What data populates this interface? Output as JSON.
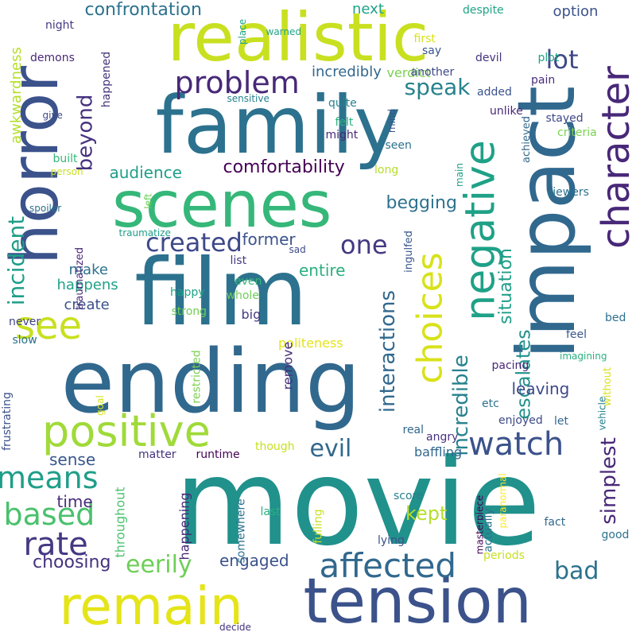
{
  "words": [
    {
      "text": "movie",
      "color": "#21918c",
      "vertical": false
    },
    {
      "text": "film",
      "color": "#2c728e",
      "vertical": false
    },
    {
      "text": "ending",
      "color": "#31688e",
      "vertical": false
    },
    {
      "text": "family",
      "color": "#2c728e",
      "vertical": false
    },
    {
      "text": "tension",
      "color": "#3b528b",
      "vertical": false
    },
    {
      "text": "remain",
      "color": "#e5e419",
      "vertical": false
    },
    {
      "text": "realistic",
      "color": "#c8e020",
      "vertical": false
    },
    {
      "text": "scenes",
      "color": "#35b779",
      "vertical": false
    },
    {
      "text": "impact",
      "color": "#31688e",
      "vertical": true
    },
    {
      "text": "horror",
      "color": "#3b528b",
      "vertical": true
    },
    {
      "text": "positive",
      "color": "#a0da39",
      "vertical": false
    },
    {
      "text": "negative",
      "color": "#1fa187",
      "vertical": true
    },
    {
      "text": "choices",
      "color": "#d8e219",
      "vertical": true
    },
    {
      "text": "character",
      "color": "#482878",
      "vertical": true
    },
    {
      "text": "see",
      "color": "#c8e020",
      "vertical": false
    },
    {
      "text": "affected",
      "color": "#31688e",
      "vertical": false
    },
    {
      "text": "watch",
      "color": "#3b528b",
      "vertical": false
    },
    {
      "text": "based",
      "color": "#4ac16d",
      "vertical": false
    },
    {
      "text": "rate",
      "color": "#443983",
      "vertical": false
    },
    {
      "text": "means",
      "color": "#1f9e89",
      "vertical": false
    },
    {
      "text": "problem",
      "color": "#482878",
      "vertical": false
    },
    {
      "text": "one",
      "color": "#443983",
      "vertical": false
    },
    {
      "text": "created",
      "color": "#3e4989",
      "vertical": false
    },
    {
      "text": "evil",
      "color": "#31688e",
      "vertical": false
    },
    {
      "text": "bad",
      "color": "#2c728e",
      "vertical": false
    },
    {
      "text": "lot",
      "color": "#3e4989",
      "vertical": false
    },
    {
      "text": "eerily",
      "color": "#6ece58",
      "vertical": false
    },
    {
      "text": "speak",
      "color": "#26828e",
      "vertical": false
    },
    {
      "text": "simplest",
      "color": "#482878",
      "vertical": true
    },
    {
      "text": "interactions",
      "color": "#31688e",
      "vertical": true
    },
    {
      "text": "incredible",
      "color": "#26828e",
      "vertical": true
    },
    {
      "text": "escalates",
      "color": "#21918c",
      "vertical": true
    },
    {
      "text": "situation",
      "color": "#1f9e89",
      "vertical": true
    },
    {
      "text": "incident",
      "color": "#1f9e89",
      "vertical": true
    },
    {
      "text": "beyond",
      "color": "#46327e",
      "vertical": true
    },
    {
      "text": "confrontation",
      "color": "#2c728e",
      "vertical": false
    },
    {
      "text": "comfortability",
      "color": "#440154",
      "vertical": false
    },
    {
      "text": "audience",
      "color": "#1f9e89",
      "vertical": false
    },
    {
      "text": "begging",
      "color": "#2c728e",
      "vertical": false
    },
    {
      "text": "former",
      "color": "#3b528b",
      "vertical": false
    },
    {
      "text": "entire",
      "color": "#2ab07f",
      "vertical": false
    },
    {
      "text": "leaving",
      "color": "#3e4989",
      "vertical": false
    },
    {
      "text": "kept",
      "color": "#b5de2b",
      "vertical": false
    },
    {
      "text": "time",
      "color": "#472c7a",
      "vertical": false
    },
    {
      "text": "sense",
      "color": "#39568c",
      "vertical": false
    },
    {
      "text": "choosing",
      "color": "#46327e",
      "vertical": false
    },
    {
      "text": "engaged",
      "color": "#3b528b",
      "vertical": false
    },
    {
      "text": "make",
      "color": "#2c728e",
      "vertical": false
    },
    {
      "text": "create",
      "color": "#3b528b",
      "vertical": false
    },
    {
      "text": "happens",
      "color": "#1fa187",
      "vertical": false
    },
    {
      "text": "politeness",
      "color": "#e5e419",
      "vertical": false
    },
    {
      "text": "option",
      "color": "#3b528b",
      "vertical": false
    },
    {
      "text": "next",
      "color": "#1fa187",
      "vertical": false
    },
    {
      "text": "remove",
      "color": "#472c7a",
      "vertical": true
    },
    {
      "text": "awkwardness",
      "color": "#b5de2b",
      "vertical": true
    },
    {
      "text": "happening",
      "color": "#482878",
      "vertical": true
    },
    {
      "text": "throughout",
      "color": "#4ac16d",
      "vertical": true
    },
    {
      "text": "frustrating",
      "color": "#3b528b",
      "vertical": true
    },
    {
      "text": "traumatized",
      "color": "#482878",
      "vertical": true
    },
    {
      "text": "restricted",
      "color": "#7ad151",
      "vertical": true
    },
    {
      "text": "somewhere",
      "color": "#2c728e",
      "vertical": true
    },
    {
      "text": "masterpiece",
      "color": "#440154",
      "vertical": true
    },
    {
      "text": "paranormal",
      "color": "#fde725",
      "vertical": true
    },
    {
      "text": "fulling",
      "color": "#c8e020",
      "vertical": true
    },
    {
      "text": "actually",
      "color": "#2c728e",
      "vertical": true
    },
    {
      "text": "baffling",
      "color": "#31688e",
      "vertical": false
    },
    {
      "text": "matter",
      "color": "#46327e",
      "vertical": false
    },
    {
      "text": "runtime",
      "color": "#440154",
      "vertical": false
    },
    {
      "text": "incredibly",
      "color": "#31688e",
      "vertical": false
    },
    {
      "text": "verdict",
      "color": "#7ad151",
      "vertical": false
    },
    {
      "text": "another",
      "color": "#3e4989",
      "vertical": false
    },
    {
      "text": "happened",
      "color": "#46327e",
      "vertical": true
    },
    {
      "text": "demons",
      "color": "#482878",
      "vertical": false
    },
    {
      "text": "night",
      "color": "#443983",
      "vertical": false
    },
    {
      "text": "despite",
      "color": "#20a486",
      "vertical": false
    },
    {
      "text": "devil",
      "color": "#46327e",
      "vertical": false
    },
    {
      "text": "plot",
      "color": "#20a486",
      "vertical": false
    },
    {
      "text": "pain",
      "color": "#472c7a",
      "vertical": false
    },
    {
      "text": "added",
      "color": "#3b528b",
      "vertical": false
    },
    {
      "text": "unlike",
      "color": "#482878",
      "vertical": false
    },
    {
      "text": "stayed",
      "color": "#3e4989",
      "vertical": false
    },
    {
      "text": "criteria",
      "color": "#7ad151",
      "vertical": false
    },
    {
      "text": "achieved",
      "color": "#31688e",
      "vertical": true
    },
    {
      "text": "viewers",
      "color": "#2c728e",
      "vertical": false
    },
    {
      "text": "ingulfed",
      "color": "#39568c",
      "vertical": true
    },
    {
      "text": "quite",
      "color": "#26828e",
      "vertical": false
    },
    {
      "text": "felt",
      "color": "#2ab07f",
      "vertical": false
    },
    {
      "text": "might",
      "color": "#482878",
      "vertical": false
    },
    {
      "text": "mind",
      "color": "#3b528b",
      "vertical": true
    },
    {
      "text": "seen",
      "color": "#2c728e",
      "vertical": false
    },
    {
      "text": "long",
      "color": "#b5de2b",
      "vertical": false
    },
    {
      "text": "main",
      "color": "#1f9e89",
      "vertical": true
    },
    {
      "text": "first",
      "color": "#d8e219",
      "vertical": false
    },
    {
      "text": "say",
      "color": "#39568c",
      "vertical": false
    },
    {
      "text": "warned",
      "color": "#20a486",
      "vertical": false
    },
    {
      "text": "place",
      "color": "#20a486",
      "vertical": true
    },
    {
      "text": "sensitive",
      "color": "#26828e",
      "vertical": false
    },
    {
      "text": "built",
      "color": "#35b779",
      "vertical": false
    },
    {
      "text": "give",
      "color": "#3e4989",
      "vertical": false
    },
    {
      "text": "person",
      "color": "#c8e020",
      "vertical": false
    },
    {
      "text": "left",
      "color": "#6ece58",
      "vertical": true
    },
    {
      "text": "spoiler",
      "color": "#2c728e",
      "vertical": false
    },
    {
      "text": "traumatize",
      "color": "#1f9e89",
      "vertical": false
    },
    {
      "text": "sad",
      "color": "#3e4989",
      "vertical": false
    },
    {
      "text": "list",
      "color": "#443983",
      "vertical": false
    },
    {
      "text": "even",
      "color": "#35b779",
      "vertical": false
    },
    {
      "text": "whole",
      "color": "#6ece58",
      "vertical": false
    },
    {
      "text": "happy",
      "color": "#1fa187",
      "vertical": false
    },
    {
      "text": "strong",
      "color": "#6ece58",
      "vertical": false
    },
    {
      "text": "big",
      "color": "#443983",
      "vertical": false
    },
    {
      "text": "never",
      "color": "#414487",
      "vertical": false
    },
    {
      "text": "slow",
      "color": "#2c728e",
      "vertical": false
    },
    {
      "text": "bed",
      "color": "#2c728e",
      "vertical": false
    },
    {
      "text": "feel",
      "color": "#39568c",
      "vertical": false
    },
    {
      "text": "imagining",
      "color": "#2ab07f",
      "vertical": false
    },
    {
      "text": "without",
      "color": "#d8e219",
      "vertical": true
    },
    {
      "text": "pacing",
      "color": "#482878",
      "vertical": false
    },
    {
      "text": "etc",
      "color": "#2c728e",
      "vertical": false
    },
    {
      "text": "enjoyed",
      "color": "#3e4989",
      "vertical": false
    },
    {
      "text": "let",
      "color": "#31688e",
      "vertical": false
    },
    {
      "text": "vehicle",
      "color": "#26828e",
      "vertical": true
    },
    {
      "text": "real",
      "color": "#31688e",
      "vertical": false
    },
    {
      "text": "angry",
      "color": "#46327e",
      "vertical": false
    },
    {
      "text": "goal",
      "color": "#d8e219",
      "vertical": true
    },
    {
      "text": "though",
      "color": "#c8e020",
      "vertical": false
    },
    {
      "text": "score",
      "color": "#26828e",
      "vertical": false
    },
    {
      "text": "last",
      "color": "#2ab07f",
      "vertical": false
    },
    {
      "text": "fact",
      "color": "#31688e",
      "vertical": false
    },
    {
      "text": "lying",
      "color": "#3b528b",
      "vertical": false
    },
    {
      "text": "good",
      "color": "#2c728e",
      "vertical": false
    },
    {
      "text": "periods",
      "color": "#c8e020",
      "vertical": false
    },
    {
      "text": "decide",
      "color": "#46327e",
      "vertical": false
    }
  ]
}
